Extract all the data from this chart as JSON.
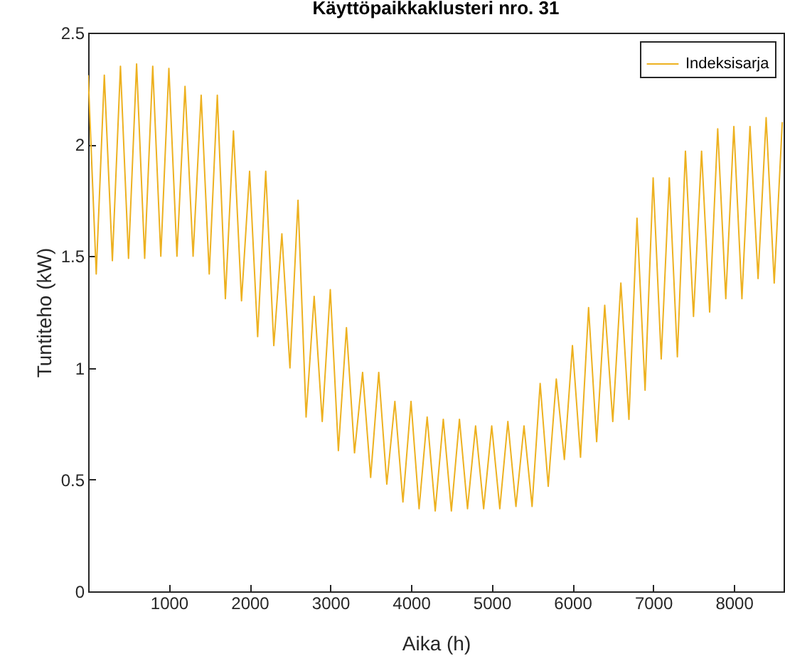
{
  "chart_data": {
    "type": "line",
    "title": "Käyttöpaikkaklusteri nro. 31",
    "xlabel": "Aika (h)",
    "ylabel": "Tuntiteho (kW)",
    "x": [
      0,
      100,
      200,
      300,
      400,
      500,
      600,
      700,
      800,
      900,
      1000,
      1100,
      1200,
      1300,
      1400,
      1500,
      1600,
      1700,
      1800,
      1900,
      2000,
      2100,
      2200,
      2300,
      2400,
      2500,
      2600,
      2700,
      2800,
      2900,
      3000,
      3100,
      3200,
      3300,
      3400,
      3500,
      3600,
      3700,
      3800,
      3900,
      4000,
      4100,
      4200,
      4300,
      4400,
      4500,
      4600,
      4700,
      4800,
      4900,
      5000,
      5100,
      5200,
      5300,
      5400,
      5500,
      5600,
      5700,
      5800,
      5900,
      6000,
      6100,
      6200,
      6300,
      6400,
      6500,
      6600,
      6700,
      6800,
      6900,
      7000,
      7100,
      7200,
      7300,
      7400,
      7500,
      7600,
      7700,
      7800,
      7900,
      8000,
      8100,
      8200,
      8300,
      8400,
      8500,
      8600
    ],
    "series": [
      {
        "name": "Indeksisarja",
        "color": "#edb120",
        "values": [
          2.31,
          1.42,
          2.31,
          1.48,
          2.35,
          1.49,
          2.36,
          1.49,
          2.35,
          1.5,
          2.34,
          1.5,
          2.26,
          1.5,
          2.22,
          1.42,
          2.22,
          1.31,
          2.06,
          1.3,
          1.88,
          1.14,
          1.88,
          1.1,
          1.6,
          1.0,
          1.75,
          0.78,
          1.32,
          0.76,
          1.35,
          0.63,
          1.18,
          0.62,
          0.98,
          0.51,
          0.98,
          0.48,
          0.85,
          0.4,
          0.85,
          0.37,
          0.78,
          0.36,
          0.77,
          0.36,
          0.77,
          0.37,
          0.74,
          0.37,
          0.74,
          0.37,
          0.76,
          0.38,
          0.74,
          0.38,
          0.93,
          0.47,
          0.95,
          0.59,
          1.1,
          0.6,
          1.27,
          0.67,
          1.28,
          0.76,
          1.38,
          0.77,
          1.67,
          0.9,
          1.85,
          1.04,
          1.85,
          1.05,
          1.97,
          1.23,
          1.97,
          1.25,
          2.07,
          1.31,
          2.08,
          1.31,
          2.08,
          1.4,
          2.12,
          1.38,
          2.1
        ]
      }
    ],
    "xlim": [
      0,
      8616
    ],
    "ylim": [
      0,
      2.5
    ],
    "xticks": [
      1000,
      2000,
      3000,
      4000,
      5000,
      6000,
      7000,
      8000
    ],
    "yticks": [
      0,
      0.5,
      1,
      1.5,
      2,
      2.5
    ],
    "grid": false,
    "legend": "top right",
    "line_style": "solid",
    "marker": "none"
  }
}
